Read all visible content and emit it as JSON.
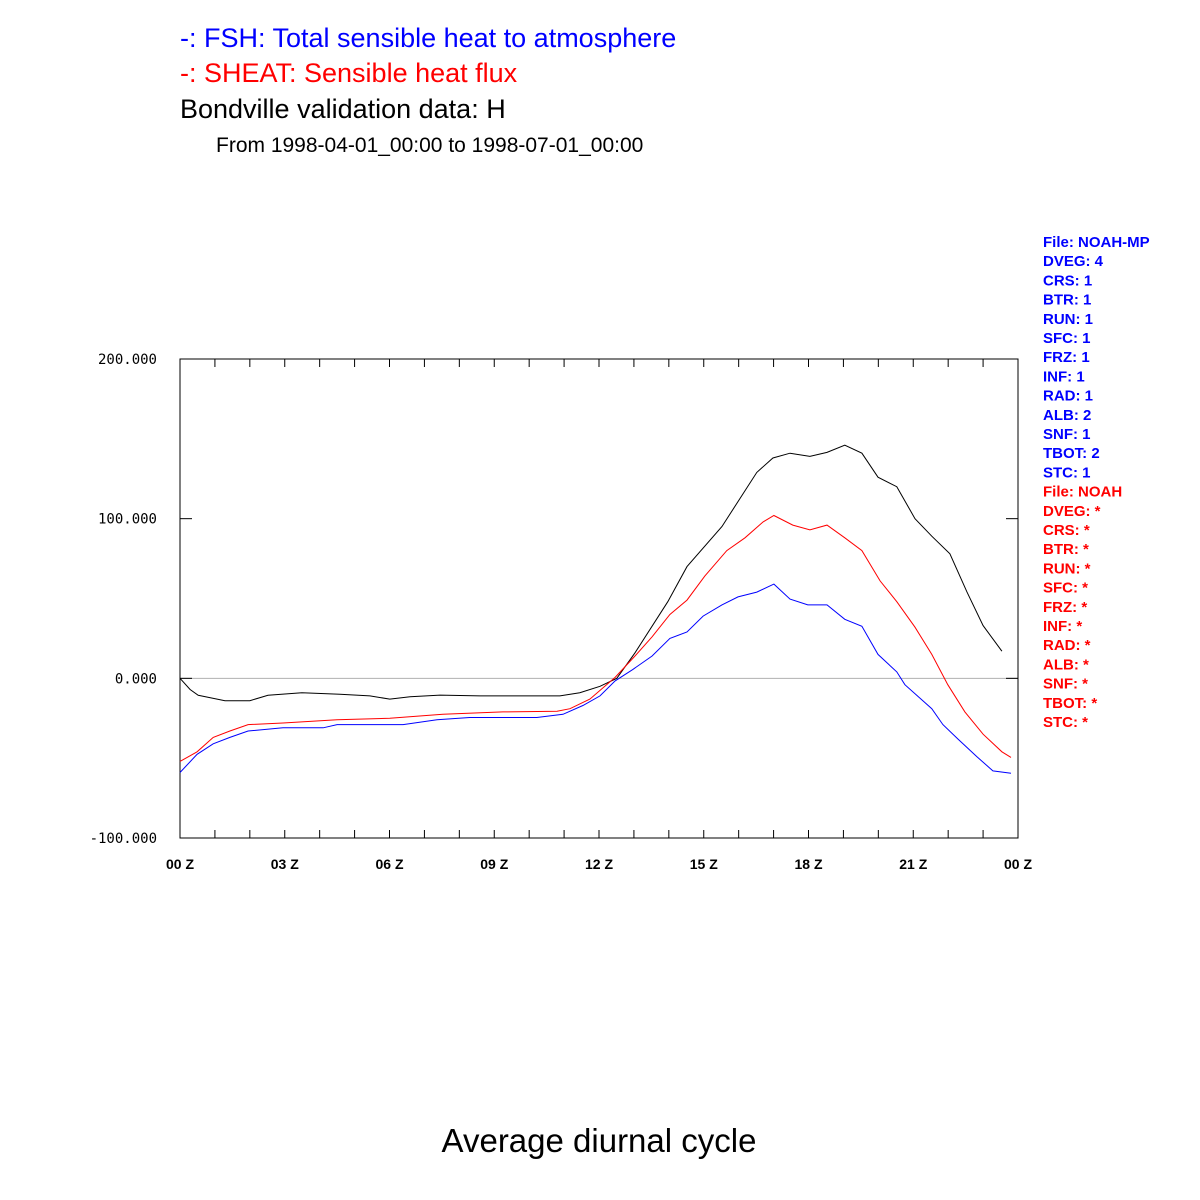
{
  "chart_data": {
    "type": "line",
    "title_lines": [
      {
        "text": "-: FSH: Total sensible heat to atmosphere",
        "color": "#0000ff"
      },
      {
        "text": "-: SHEAT: Sensible heat flux",
        "color": "#ff0000"
      },
      {
        "text": "Bondville validation data: H",
        "color": "#000000"
      }
    ],
    "subtitle": "From 1998-04-01_00:00 to 1998-07-01_00:00",
    "footer_title": "Average diurnal cycle",
    "xlabel": "",
    "ylabel": "",
    "xlim": [
      0,
      24
    ],
    "ylim": [
      -100,
      200
    ],
    "y_ticks": [
      {
        "value": 200,
        "label": "200.000"
      },
      {
        "value": 100,
        "label": "100.000"
      },
      {
        "value": 0,
        "label": "0.000"
      },
      {
        "value": -100,
        "label": "-100.000"
      }
    ],
    "x_ticks": [
      {
        "value": 0,
        "label": "00 Z"
      },
      {
        "value": 3,
        "label": "03 Z"
      },
      {
        "value": 6,
        "label": "06 Z"
      },
      {
        "value": 9,
        "label": "09 Z"
      },
      {
        "value": 12,
        "label": "12 Z"
      },
      {
        "value": 15,
        "label": "15 Z"
      },
      {
        "value": 18,
        "label": "18 Z"
      },
      {
        "value": 21,
        "label": "21 Z"
      },
      {
        "value": 24,
        "label": "00 Z"
      }
    ],
    "zero_line": true,
    "series": [
      {
        "name": "Bondville validation data: H",
        "color": "#000000",
        "x": [
          0,
          0.29,
          0.52,
          1.29,
          2.0,
          2.52,
          3.49,
          4.58,
          5.44,
          6.01,
          6.59,
          7.45,
          8.59,
          9.5,
          10.31,
          10.88,
          11.45,
          12.03,
          12.51,
          13.03,
          13.97,
          14.52,
          15.52,
          16.52,
          16.98,
          17.47,
          18.04,
          18.53,
          19.04,
          19.53,
          19.99,
          20.53,
          21.05,
          21.53,
          22.05,
          22.54,
          23.0,
          23.54
        ],
        "y": [
          0,
          -7,
          -10.6,
          -14,
          -14,
          -10.6,
          -9,
          -10,
          -11,
          -13,
          -11.5,
          -10.5,
          -11,
          -11,
          -11,
          -11,
          -9,
          -5,
          0,
          16,
          48,
          70,
          95,
          129,
          138,
          141,
          139,
          141.5,
          146,
          141,
          126,
          120,
          100,
          89,
          78,
          54,
          33,
          17
        ]
      },
      {
        "name": "FSH",
        "color": "#0000ff",
        "x": [
          0,
          0.49,
          0.95,
          1.43,
          1.95,
          2.95,
          4.1,
          4.5,
          6.39,
          7.36,
          8.3,
          10.22,
          10.97,
          11.54,
          12.03,
          12.46,
          12.97,
          13.52,
          14.03,
          14.52,
          14.98,
          15.52,
          15.98,
          16.52,
          17.01,
          17.47,
          17.98,
          18.53,
          19.04,
          19.53,
          19.99,
          20.53,
          20.76,
          21.53,
          21.85,
          22.28,
          22.82,
          23.28,
          23.8
        ],
        "y": [
          -59,
          -47.6,
          -41,
          -37,
          -33,
          -31,
          -31,
          -29,
          -29,
          -26,
          -24.5,
          -24.5,
          -22.5,
          -17,
          -11,
          -1.6,
          5.6,
          14,
          25,
          29,
          39,
          46,
          51,
          54,
          59,
          49.6,
          46,
          46,
          37,
          32.6,
          15,
          4,
          -4,
          -19,
          -29,
          -38,
          -49,
          -58,
          -59.5
        ]
      },
      {
        "name": "SHEAT",
        "color": "#ff0000",
        "x": [
          0,
          0.49,
          0.95,
          1.43,
          1.95,
          2.95,
          4.5,
          6.01,
          7.53,
          9.25,
          10.8,
          11.17,
          11.74,
          12.46,
          13.03,
          13.52,
          14.03,
          14.52,
          15.03,
          15.66,
          16.18,
          16.7,
          17.01,
          17.55,
          18.04,
          18.53,
          19.04,
          19.53,
          20.05,
          20.53,
          21.05,
          21.53,
          21.99,
          22.48,
          23.0,
          23.54,
          23.8
        ],
        "y": [
          -52,
          -46,
          -37,
          -33,
          -29,
          -28,
          -26,
          -25,
          -22.5,
          -21,
          -20.6,
          -19,
          -13,
          0.6,
          14,
          26,
          40,
          49,
          64,
          80,
          88,
          98,
          102,
          96,
          93,
          96,
          88,
          80,
          61,
          48,
          32,
          15,
          -4,
          -21,
          -35,
          -46,
          -49.5
        ]
      }
    ],
    "side_legends": [
      {
        "color": "#0000ff",
        "lines": [
          "File: NOAH-MP",
          "DVEG: 4",
          "CRS: 1",
          "BTR: 1",
          "RUN: 1",
          "SFC: 1",
          "FRZ: 1",
          "INF: 1",
          "RAD: 1",
          "ALB: 2",
          "SNF: 1",
          "TBOT: 2",
          "STC: 1"
        ]
      },
      {
        "color": "#ff0000",
        "lines": [
          "File: NOAH",
          "DVEG: *",
          "CRS: *",
          "BTR: *",
          "RUN: *",
          "SFC: *",
          "FRZ: *",
          "INF: *",
          "RAD: *",
          "ALB: *",
          "SNF: *",
          "TBOT: *",
          "STC: *"
        ]
      }
    ]
  }
}
